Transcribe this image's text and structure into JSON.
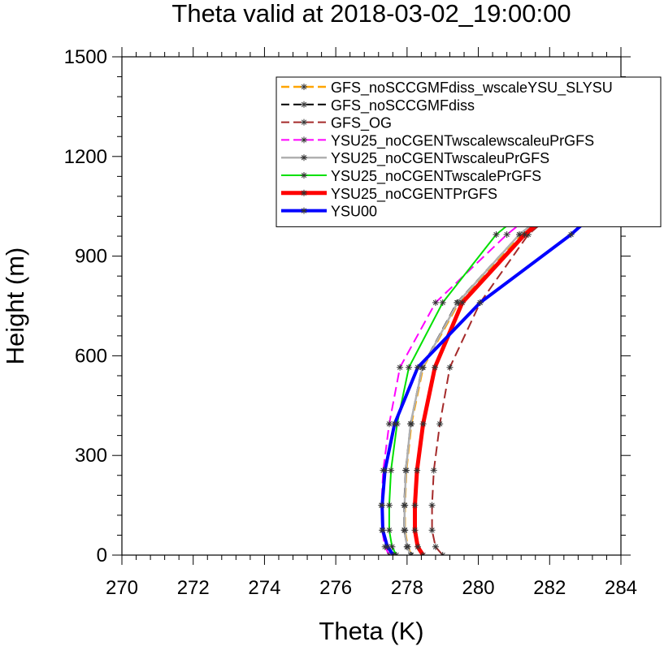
{
  "chart_data": {
    "type": "line",
    "title": "Theta valid at 2018-03-02_19:00:00",
    "xlabel": "Theta (K)",
    "ylabel": "Height (m)",
    "xlim": [
      270,
      284
    ],
    "ylim": [
      0,
      1500
    ],
    "xticks": [
      270,
      272,
      274,
      276,
      278,
      280,
      282,
      284
    ],
    "yticks": [
      0,
      300,
      600,
      900,
      1200,
      1500
    ],
    "xtick_labels": [
      "270",
      "272",
      "274",
      "276",
      "278",
      "280",
      "282",
      "284"
    ],
    "ytick_labels": [
      "0",
      "300",
      "600",
      "900",
      "1200",
      "1500"
    ],
    "grid": false,
    "legend_position": "top-right",
    "series": [
      {
        "name": "GFS_noSCCGMFdiss_wscaleYSU_SLYSU",
        "color": "#ffa500",
        "dash": "dashed",
        "width": 2.5,
        "x": [
          278.12,
          278.02,
          277.94,
          277.94,
          277.98,
          278.12,
          278.45,
          279.45,
          281.2,
          284.0
        ],
        "y": [
          0,
          25,
          75,
          150,
          255,
          395,
          565,
          760,
          965,
          1210
        ]
      },
      {
        "name": "GFS_noSCCGMFdiss",
        "color": "#000000",
        "dash": "dashed",
        "width": 2,
        "x": [
          278.1,
          278.0,
          277.92,
          277.92,
          277.96,
          278.1,
          278.42,
          279.4,
          281.15,
          284.0
        ],
        "y": [
          0,
          25,
          75,
          150,
          255,
          395,
          565,
          760,
          965,
          1205
        ]
      },
      {
        "name": "GFS_OG",
        "color": "#a52a2a",
        "dash": "dashed",
        "width": 2,
        "x": [
          279.0,
          278.8,
          278.7,
          278.7,
          278.75,
          278.92,
          279.2,
          280.05,
          281.4,
          284.0
        ],
        "y": [
          0,
          25,
          75,
          150,
          255,
          395,
          565,
          760,
          965,
          1200
        ]
      },
      {
        "name": "YSU25_noCGENTwscalewscaleuPrGFS",
        "color": "#ff00ff",
        "dash": "dashed",
        "width": 2,
        "x": [
          277.5,
          277.38,
          277.3,
          277.28,
          277.33,
          277.5,
          277.8,
          278.8,
          280.8,
          284.0
        ],
        "y": [
          0,
          25,
          75,
          150,
          255,
          395,
          565,
          760,
          965,
          1240
        ]
      },
      {
        "name": "YSU25_noCGENTwscaleuPrGFS",
        "color": "#b0b0b0",
        "dash": "solid",
        "width": 2.5,
        "x": [
          278.1,
          278.0,
          277.93,
          277.93,
          277.97,
          278.1,
          278.43,
          279.42,
          281.15,
          284.0
        ],
        "y": [
          0,
          25,
          75,
          150,
          255,
          395,
          565,
          760,
          965,
          1210
        ]
      },
      {
        "name": "YSU25_noCGENTwscalePrGFS",
        "color": "#00e000",
        "dash": "solid",
        "width": 2,
        "x": [
          277.7,
          277.58,
          277.5,
          277.5,
          277.55,
          277.72,
          278.05,
          279.0,
          280.5,
          284.0
        ],
        "y": [
          0,
          25,
          75,
          150,
          255,
          395,
          565,
          760,
          965,
          1270
        ]
      },
      {
        "name": "YSU25_noCGENTPrGFS",
        "color": "#ff0000",
        "dash": "solid",
        "width": 5,
        "x": [
          278.45,
          278.3,
          278.22,
          278.22,
          278.28,
          278.45,
          278.78,
          279.55,
          281.3,
          284.0
        ],
        "y": [
          0,
          25,
          75,
          150,
          255,
          395,
          565,
          760,
          965,
          1215
        ]
      },
      {
        "name": "YSU00",
        "color": "#0000ff",
        "dash": "solid",
        "width": 4,
        "x": [
          277.62,
          277.45,
          277.32,
          277.3,
          277.38,
          277.65,
          278.3,
          280.05,
          282.6,
          284.0
        ],
        "y": [
          0,
          25,
          75,
          150,
          255,
          395,
          565,
          760,
          965,
          1100
        ]
      }
    ]
  }
}
